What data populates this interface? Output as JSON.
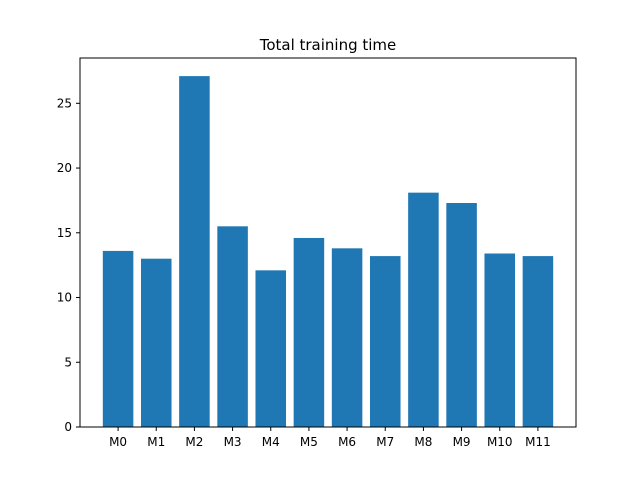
{
  "chart_data": {
    "type": "bar",
    "title": "Total training time",
    "xlabel": "",
    "ylabel": "",
    "categories": [
      "M0",
      "M1",
      "M2",
      "M3",
      "M4",
      "M5",
      "M6",
      "M7",
      "M8",
      "M9",
      "M10",
      "M11"
    ],
    "values": [
      13.6,
      13.0,
      27.1,
      15.5,
      12.1,
      14.6,
      13.8,
      13.2,
      18.1,
      17.3,
      13.4,
      13.2
    ],
    "ylim": [
      0,
      28.5
    ],
    "yticks": [
      0,
      5,
      10,
      15,
      20,
      25
    ],
    "bar_color": "#1f77b4",
    "grid": false,
    "legend": false
  }
}
